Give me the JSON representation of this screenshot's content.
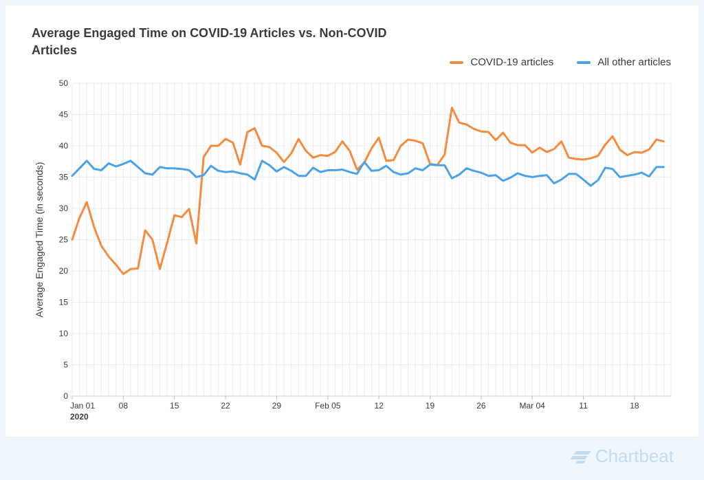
{
  "chart_data": {
    "type": "line",
    "title": "Average Engaged Time on COVID-19 Articles vs. Non-COVID Articles",
    "ylabel": "Average Engaged Time (in seconds)",
    "xlabel": "",
    "ylim": [
      0,
      50
    ],
    "yticks": [
      0,
      5,
      10,
      15,
      20,
      25,
      30,
      35,
      40,
      45,
      50
    ],
    "x_start": "2020-01-01",
    "x_end": "2020-03-23",
    "xticks": [
      {
        "date": "2020-01-01",
        "label": "Jan 01",
        "sublabel": "2020"
      },
      {
        "date": "2020-01-08",
        "label": "08"
      },
      {
        "date": "2020-01-15",
        "label": "15"
      },
      {
        "date": "2020-01-22",
        "label": "22"
      },
      {
        "date": "2020-01-29",
        "label": "29"
      },
      {
        "date": "2020-02-05",
        "label": "Feb 05"
      },
      {
        "date": "2020-02-12",
        "label": "12"
      },
      {
        "date": "2020-02-19",
        "label": "19"
      },
      {
        "date": "2020-02-26",
        "label": "26"
      },
      {
        "date": "2020-03-04",
        "label": "Mar 04"
      },
      {
        "date": "2020-03-11",
        "label": "11"
      },
      {
        "date": "2020-03-18",
        "label": "18"
      }
    ],
    "legend_position": "top-right",
    "grid": true,
    "series": [
      {
        "name": "COVID-19 articles",
        "color": "#f58b3f",
        "values": [
          25.0,
          28.5,
          31.0,
          27.0,
          24.0,
          22.3,
          21.0,
          19.5,
          20.3,
          20.4,
          26.5,
          25.0,
          20.3,
          24.5,
          28.9,
          28.6,
          29.9,
          24.4,
          38.2,
          40.0,
          40.0,
          41.1,
          40.5,
          37.0,
          42.2,
          42.8,
          40.0,
          39.8,
          38.9,
          37.4,
          38.8,
          41.1,
          39.2,
          38.1,
          38.5,
          38.4,
          39.0,
          40.7,
          39.2,
          36.2,
          37.3,
          39.6,
          41.3,
          37.6,
          37.7,
          40.0,
          41.0,
          40.8,
          40.4,
          37.1,
          36.9,
          38.6,
          46.1,
          43.7,
          43.4,
          42.7,
          42.3,
          42.2,
          40.9,
          42.1,
          40.5,
          40.1,
          40.1,
          38.9,
          39.7,
          39.0,
          39.5,
          40.7,
          38.1,
          37.9,
          37.8,
          38.0,
          38.4,
          40.2,
          41.5,
          39.4,
          38.5,
          39.0,
          38.9,
          39.4,
          41.0,
          40.7
        ]
      },
      {
        "name": "All other articles",
        "color": "#4aa3ea",
        "values": [
          35.2,
          36.4,
          37.6,
          36.3,
          36.1,
          37.2,
          36.7,
          37.1,
          37.6,
          36.6,
          35.6,
          35.4,
          36.6,
          36.4,
          36.4,
          36.3,
          36.1,
          35.0,
          35.3,
          36.8,
          36.0,
          35.8,
          35.9,
          35.6,
          35.4,
          34.6,
          37.6,
          36.9,
          35.9,
          36.6,
          36.0,
          35.2,
          35.2,
          36.5,
          35.8,
          36.1,
          36.1,
          36.2,
          35.8,
          35.5,
          37.4,
          36.0,
          36.1,
          36.8,
          35.8,
          35.4,
          35.6,
          36.4,
          36.1,
          37.0,
          36.9,
          36.9,
          34.8,
          35.4,
          36.4,
          36.0,
          35.7,
          35.2,
          35.3,
          34.4,
          34.9,
          35.6,
          35.2,
          35.0,
          35.2,
          35.3,
          34.0,
          34.6,
          35.5,
          35.5,
          34.6,
          33.6,
          34.5,
          36.5,
          36.3,
          35.0,
          35.2,
          35.4,
          35.7,
          35.1,
          36.6,
          36.6
        ]
      }
    ]
  },
  "watermark": {
    "text": "Chartbeat",
    "icon": "chartbeat-logo-icon",
    "color": "#c4dcef"
  }
}
